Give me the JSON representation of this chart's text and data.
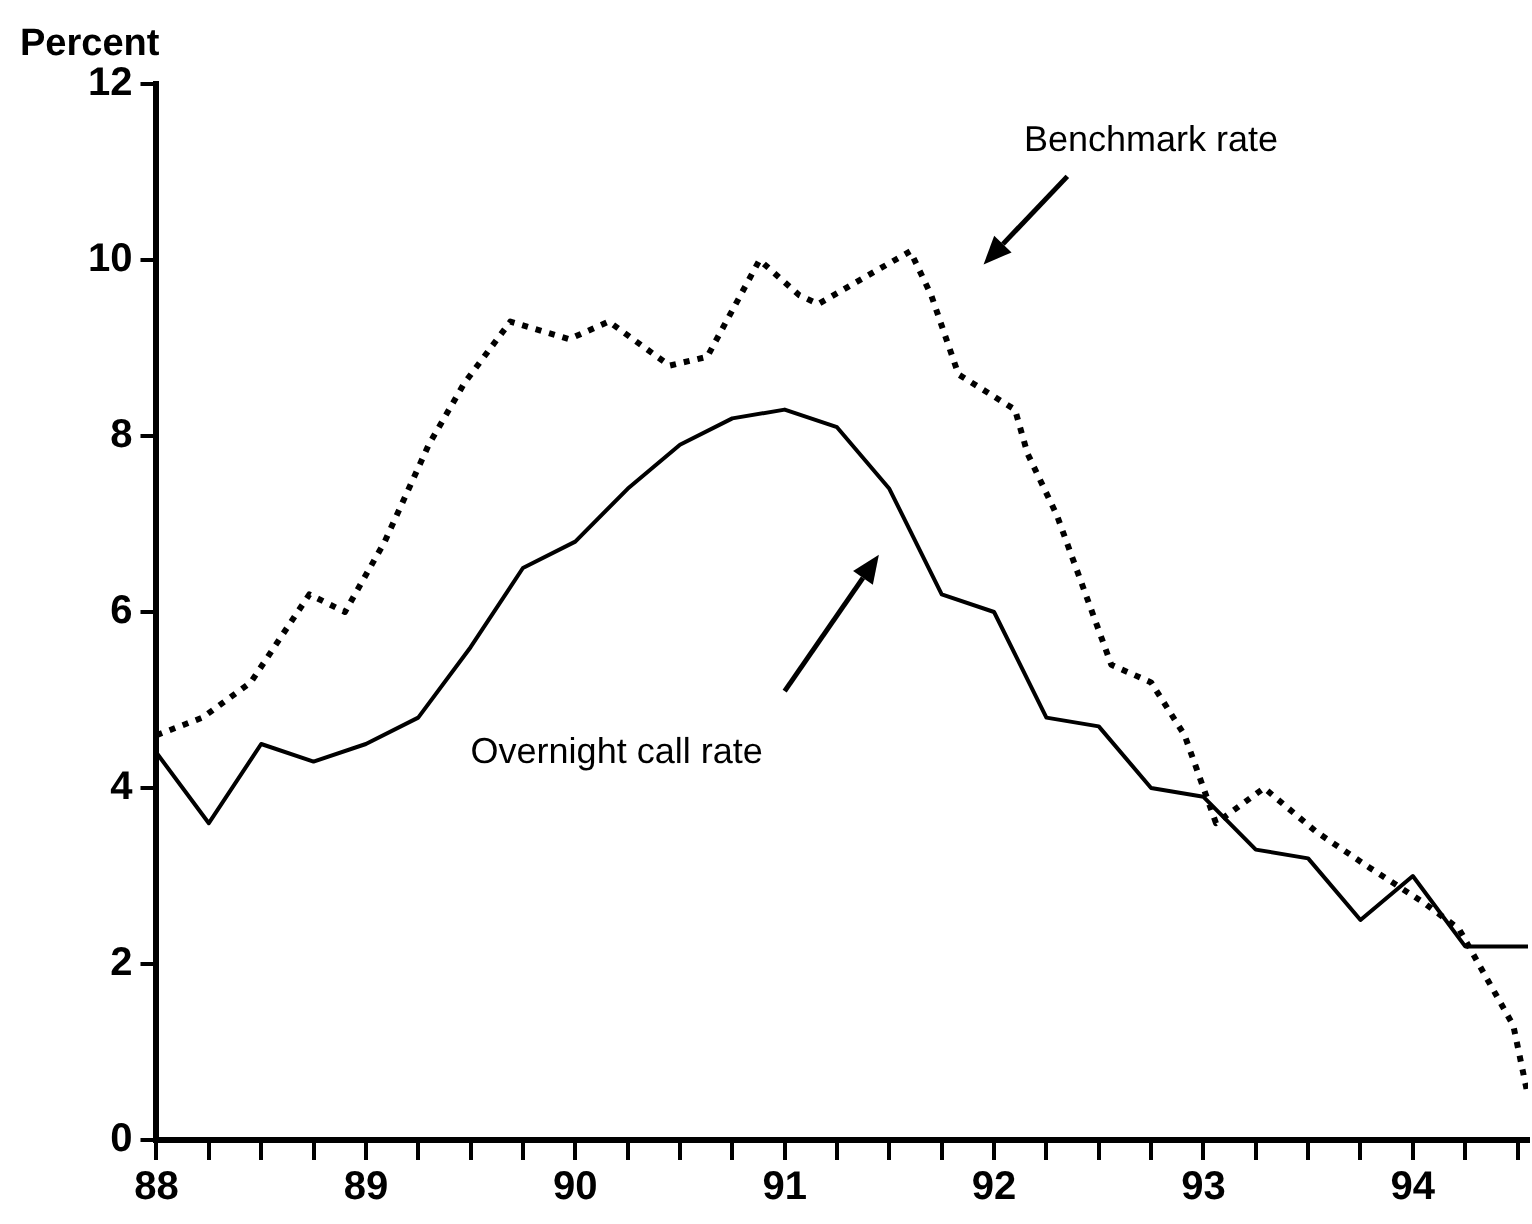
{
  "chart_data": {
    "type": "line",
    "ylabel": "Percent",
    "xlim": [
      88,
      94.55
    ],
    "ylim": [
      0,
      12
    ],
    "xticks": [
      88,
      {
        "value": 88.25,
        "label": null
      },
      {
        "value": 88.5,
        "label": null
      },
      {
        "value": 88.75,
        "label": null
      },
      89,
      {
        "value": 89.25,
        "label": null
      },
      {
        "value": 89.5,
        "label": null
      },
      {
        "value": 89.75,
        "label": null
      },
      90,
      {
        "value": 90.25,
        "label": null
      },
      {
        "value": 90.5,
        "label": null
      },
      {
        "value": 90.75,
        "label": null
      },
      91,
      {
        "value": 91.25,
        "label": null
      },
      {
        "value": 91.5,
        "label": null
      },
      {
        "value": 91.75,
        "label": null
      },
      92,
      {
        "value": 92.25,
        "label": null
      },
      {
        "value": 92.5,
        "label": null
      },
      {
        "value": 92.75,
        "label": null
      },
      93,
      {
        "value": 93.25,
        "label": null
      },
      {
        "value": 93.5,
        "label": null
      },
      {
        "value": 93.75,
        "label": null
      },
      94,
      {
        "value": 94.25,
        "label": null
      },
      {
        "value": 94.5,
        "label": null
      }
    ],
    "yticks": [
      0,
      2,
      4,
      6,
      8,
      10,
      12
    ],
    "grid": false,
    "legend": false,
    "marker": "none",
    "series": [
      {
        "name": "Benchmark rate",
        "color": "#000000",
        "line_style": "dotted",
        "x": [
          88.0,
          88.22,
          88.45,
          88.73,
          88.9,
          89.09,
          89.3,
          89.47,
          89.69,
          89.97,
          90.16,
          90.45,
          90.63,
          90.88,
          91.07,
          91.16,
          91.6,
          91.7,
          91.83,
          92.1,
          92.16,
          92.3,
          92.56,
          92.75,
          92.91,
          93.06,
          93.29,
          93.54,
          93.79,
          94.05,
          94.22,
          94.48,
          94.55
        ],
        "values": [
          4.6,
          4.8,
          5.2,
          6.2,
          6.0,
          6.8,
          7.9,
          8.6,
          9.3,
          9.1,
          9.3,
          8.8,
          8.9,
          10.0,
          9.6,
          9.5,
          10.1,
          9.6,
          8.7,
          8.3,
          7.8,
          7.1,
          5.4,
          5.2,
          4.6,
          3.6,
          4.0,
          3.5,
          3.1,
          2.7,
          2.4,
          1.3,
          0.5
        ]
      },
      {
        "name": "Overnight call rate",
        "color": "#000000",
        "line_style": "solid",
        "x": [
          88.0,
          88.25,
          88.5,
          88.75,
          89.0,
          89.25,
          89.5,
          89.75,
          90.0,
          90.25,
          90.5,
          90.75,
          91.0,
          91.25,
          91.5,
          91.75,
          92.0,
          92.25,
          92.5,
          92.75,
          93.0,
          93.25,
          93.5,
          93.75,
          94.0,
          94.25,
          94.5,
          94.55
        ],
        "values": [
          4.4,
          3.6,
          4.5,
          4.3,
          4.5,
          4.8,
          5.6,
          6.5,
          6.8,
          7.4,
          7.9,
          8.2,
          8.3,
          8.1,
          7.4,
          6.2,
          6.0,
          4.8,
          4.7,
          4.0,
          3.9,
          3.3,
          3.2,
          2.5,
          3.0,
          2.2,
          2.2,
          2.2
        ]
      }
    ]
  }
}
